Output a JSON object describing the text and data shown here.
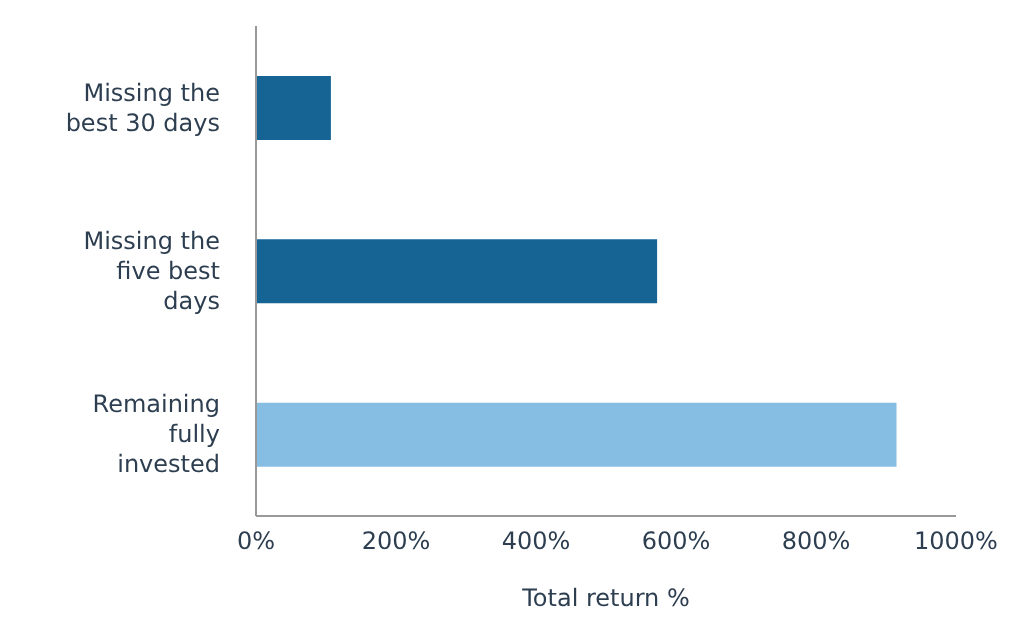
{
  "chart_data": {
    "type": "bar",
    "orientation": "horizontal",
    "xlabel": "Total return %",
    "categories": [
      "Missing the best 30 days",
      "Missing the five best days",
      "Remaining fully invested"
    ],
    "values": [
      107,
      573,
      915
    ],
    "colors": [
      "#156494",
      "#156494",
      "#85bde3"
    ],
    "xlim": [
      0,
      1000
    ],
    "xticks": [
      {
        "value": 0,
        "label": "0%"
      },
      {
        "value": 200,
        "label": "200%"
      },
      {
        "value": 400,
        "label": "400%"
      },
      {
        "value": 600,
        "label": "600%"
      },
      {
        "value": 800,
        "label": "800%"
      },
      {
        "value": 1000,
        "label": "1000%"
      }
    ],
    "grid": false,
    "legend": false
  }
}
